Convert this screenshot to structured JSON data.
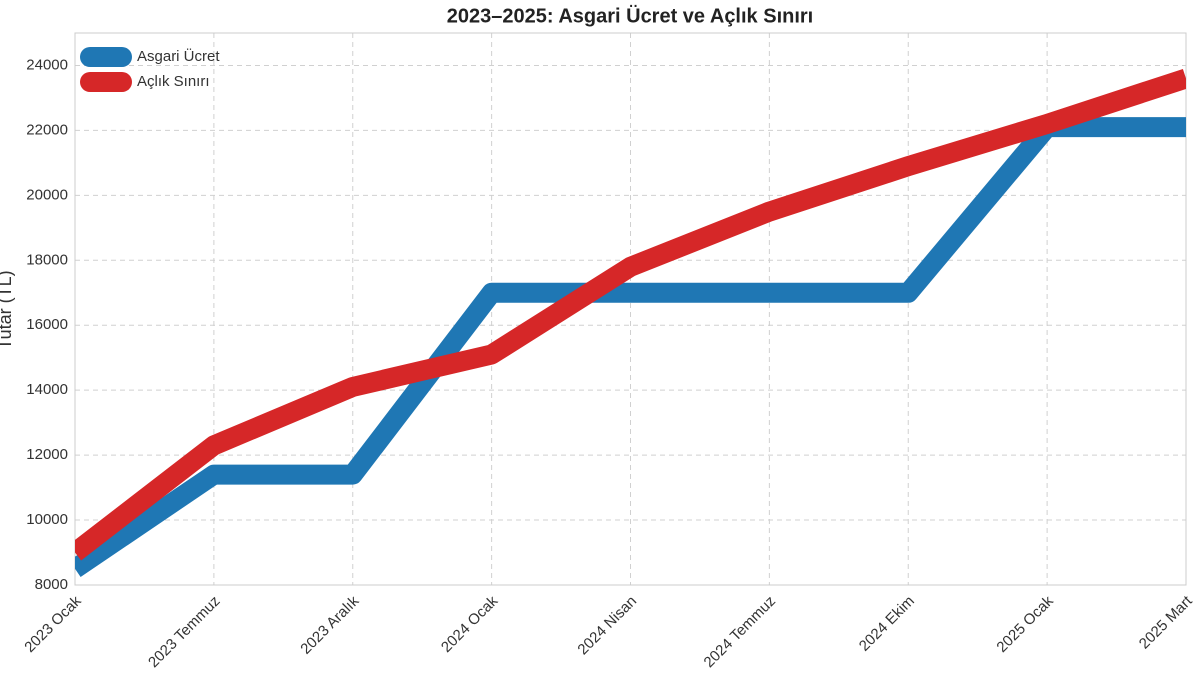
{
  "chart_data": {
    "type": "line",
    "title": "2023–2025: Asgari Ücret ve Açlık Sınırı",
    "y_label": "Tutar (TL)",
    "categories": [
      "2023 Ocak",
      "2023 Temmuz",
      "2023 Aralık",
      "2024 Ocak",
      "2024 Nisan",
      "2024 Temmuz",
      "2024 Ekim",
      "2025 Ocak",
      "2025 Mart"
    ],
    "series": [
      {
        "name": "Asgari Ücret",
        "color": "#1f77b4",
        "values": [
          8500,
          11400,
          11400,
          17000,
          17000,
          17000,
          17000,
          22100,
          22100
        ]
      },
      {
        "name": "Açlık Sınırı",
        "color": "#d62728",
        "values": [
          9000,
          12300,
          14100,
          15100,
          17800,
          19500,
          20900,
          22200,
          23600
        ]
      }
    ],
    "ylim": [
      8000,
      25000
    ],
    "yticks": [
      8000,
      10000,
      12000,
      14000,
      16000,
      18000,
      20000,
      22000,
      24000
    ],
    "grid": true,
    "legend": "upper left"
  }
}
